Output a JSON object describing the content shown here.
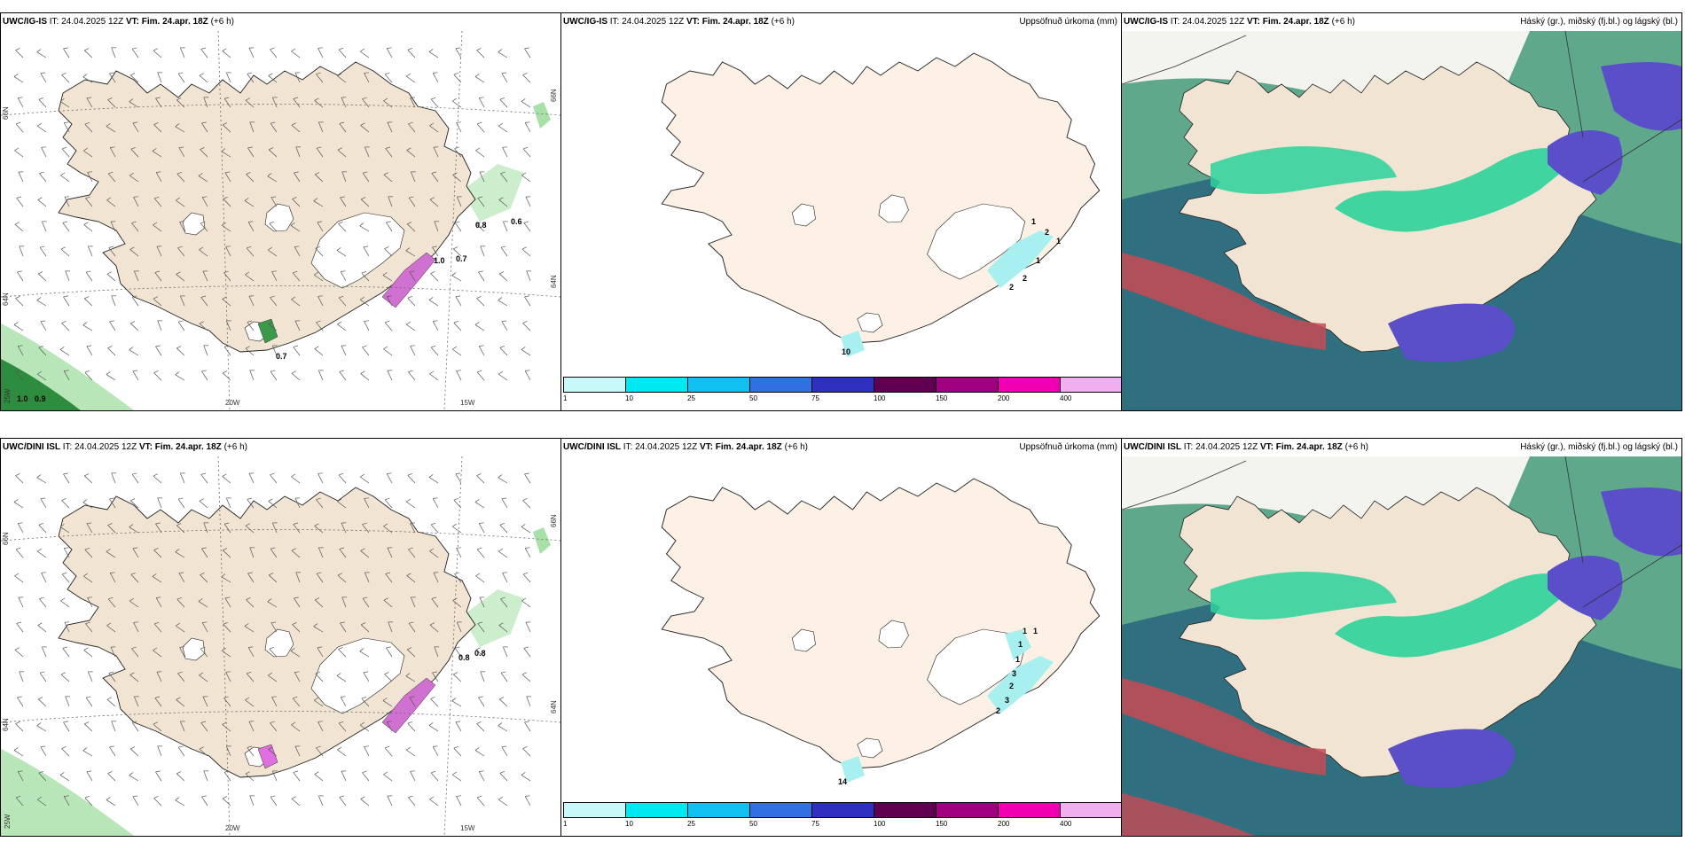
{
  "panels": [
    {
      "id": "p1",
      "model": "UWC/IG-IS",
      "it_label": "IT:",
      "it": "24.04.2025 12Z",
      "vt_label": "VT:",
      "vt": "Fim. 24.apr. 18Z",
      "lead": "(+6 h)",
      "right_title": ""
    },
    {
      "id": "p2",
      "model": "UWC/IG-IS",
      "it_label": "IT:",
      "it": "24.04.2025 12Z",
      "vt_label": "VT:",
      "vt": "Fim. 24.apr. 18Z",
      "lead": "(+6 h)",
      "right_title": "Uppsöfnuð úrkoma (mm)"
    },
    {
      "id": "p3",
      "model": "UWC/IG-IS",
      "it_label": "IT:",
      "it": "24.04.2025 12Z",
      "vt_label": "VT:",
      "vt": "Fim. 24.apr. 18Z",
      "lead": "(+6 h)",
      "right_title": "Háský (gr.), miðský (fj.bl.) og lágský (bl.)"
    },
    {
      "id": "p4",
      "model": "UWC/DINI ISL",
      "it_label": "IT:",
      "it": "24.04.2025 12Z",
      "vt_label": "VT:",
      "vt": "Fim. 24.apr. 18Z",
      "lead": "(+6 h)",
      "right_title": ""
    },
    {
      "id": "p5",
      "model": "UWC/DINI ISL",
      "it_label": "IT:",
      "it": "24.04.2025 12Z",
      "vt_label": "VT:",
      "vt": "Fim. 24.apr. 18Z",
      "lead": "(+6 h)",
      "right_title": "Uppsöfnuð úrkoma (mm)"
    },
    {
      "id": "p6",
      "model": "UWC/DINI ISL",
      "it_label": "IT:",
      "it": "24.04.2025 12Z",
      "vt_label": "VT:",
      "vt": "Fim. 24.apr. 18Z",
      "lead": "(+6 h)",
      "right_title": "Háský (gr.), miðský (fj.bl.) og lágský (bl.)"
    }
  ],
  "axis_labels": {
    "lat66": "66N",
    "lat64": "64N",
    "lon20": "20W",
    "lon15": "15W",
    "lon25": "25W"
  },
  "precip_colorbar": {
    "ticks": [
      "1",
      "10",
      "25",
      "50",
      "75",
      "100",
      "150",
      "200",
      "400"
    ],
    "colors": [
      "#c8f8f8",
      "#00e8f0",
      "#10c0f0",
      "#3070e0",
      "#3030c0",
      "#600050",
      "#a00080",
      "#f000b0",
      "#f0b0f0"
    ]
  },
  "wind_values_top": [
    "0.8",
    "0.6",
    "1.0",
    "0.7",
    "0.7",
    "1.0",
    "0.9"
  ],
  "wind_values_bottom": [
    "0.8",
    "0.8"
  ],
  "precip_values_top": [
    "1",
    "2",
    "1",
    "1",
    "2",
    "2",
    "10"
  ],
  "precip_values_bottom": [
    "1",
    "1",
    "1",
    "1",
    "3",
    "2",
    "3",
    "2",
    "14"
  ],
  "colors": {
    "land": "#f1e4d3",
    "land2": "#fcf1e4",
    "glacier": "#ffffff",
    "cloud_low": "#2f6f80",
    "cloud_mid": "#5a4fc8",
    "cloud_high": "#2bd29a",
    "cloud_high2": "#5fa88c",
    "red": "#c74b55"
  }
}
